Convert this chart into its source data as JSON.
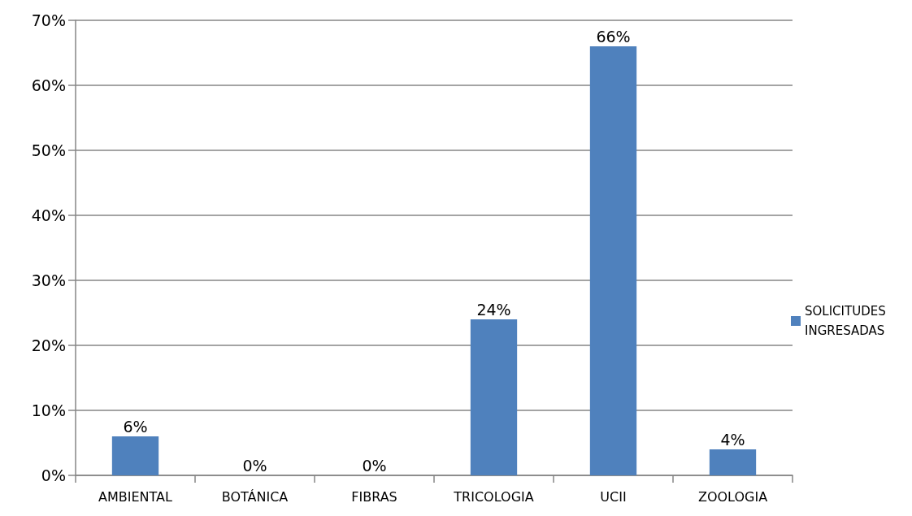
{
  "chart_data": {
    "type": "bar",
    "categories": [
      "AMBIENTAL",
      "BOTÁNICA",
      "FIBRAS",
      "TRICOLOGIA",
      "UCII",
      "ZOOLOGIA"
    ],
    "series": [
      {
        "name": "SOLICITUDES INGRESADAS",
        "color": "#4f81bd",
        "values": [
          6,
          0,
          0,
          24,
          66,
          4
        ],
        "value_labels": [
          "6%",
          "0%",
          "0%",
          "24%",
          "66%",
          "4%"
        ]
      }
    ],
    "ylim": [
      0,
      70
    ],
    "yticks": [
      {
        "value": 0,
        "label": "0%"
      },
      {
        "value": 10,
        "label": "10%"
      },
      {
        "value": 20,
        "label": "20%"
      },
      {
        "value": 30,
        "label": "30%"
      },
      {
        "value": 40,
        "label": "40%"
      },
      {
        "value": 50,
        "label": "50%"
      },
      {
        "value": 60,
        "label": "60%"
      },
      {
        "value": 70,
        "label": "70%"
      }
    ],
    "grid": "y",
    "legend": "right"
  }
}
